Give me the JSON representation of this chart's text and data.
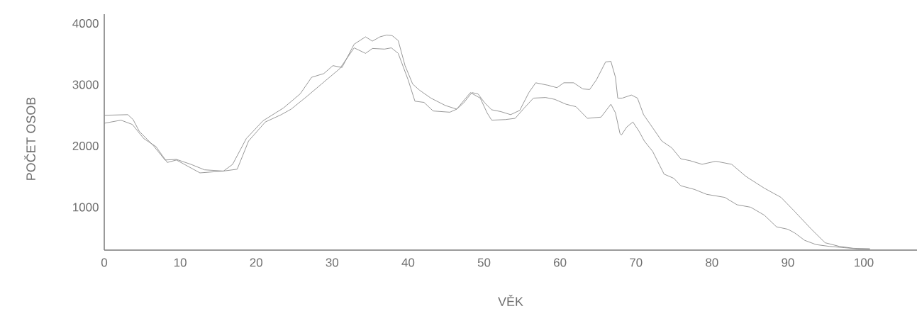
{
  "chart_data": {
    "type": "line",
    "xlabel": "VĚK",
    "ylabel": "POČET OSOB",
    "xlim": [
      0,
      107
    ],
    "ylim": [
      300,
      4150
    ],
    "xticks": [
      0,
      10,
      20,
      30,
      40,
      50,
      60,
      70,
      80,
      90,
      100
    ],
    "yticks": [
      1000,
      2000,
      3000,
      4000
    ],
    "grid": false,
    "marker": "none",
    "line_style": "solid",
    "series": [
      {
        "color": "#8c8c8c",
        "x": [
          0,
          3.1,
          3.8,
          4.6,
          6.5,
          8.0,
          9.5,
          11.4,
          13.2,
          15.7,
          16.9,
          18.7,
          20.9,
          23.6,
          25.8,
          27.3,
          28.9,
          30.1,
          31.3,
          32.9,
          34.4,
          35.3,
          36.3,
          37.2,
          37.9,
          38.7,
          39.6,
          40.6,
          41.5,
          43.0,
          44.9,
          46.4,
          47.3,
          48.4,
          49.2,
          50.1,
          51.0,
          52.2,
          53.5,
          54.7,
          55.9,
          56.8,
          58.4,
          59.6,
          60.5,
          61.8,
          63.0,
          63.9,
          64.8,
          66.0,
          66.7,
          67.3,
          67.6,
          68.2,
          69.4,
          70.2,
          71.0,
          71.9,
          73.4,
          74.7,
          75.9,
          77.1,
          78.7,
          80.5,
          82.6,
          84.5,
          86.9,
          89.1,
          90.9,
          93.1,
          94.9,
          96.8,
          98.6,
          100.8
        ],
        "values": [
          2500,
          2510,
          2430,
          2240,
          2000,
          1770,
          1780,
          1700,
          1610,
          1590,
          1700,
          2120,
          2410,
          2620,
          2850,
          3120,
          3180,
          3310,
          3280,
          3660,
          3780,
          3710,
          3780,
          3810,
          3800,
          3720,
          3310,
          3010,
          2910,
          2780,
          2660,
          2600,
          2700,
          2870,
          2850,
          2700,
          2590,
          2560,
          2510,
          2580,
          2870,
          3030,
          2990,
          2950,
          3030,
          3030,
          2930,
          2920,
          3080,
          3370,
          3380,
          3120,
          2780,
          2780,
          2830,
          2780,
          2510,
          2350,
          2080,
          1970,
          1790,
          1760,
          1700,
          1750,
          1700,
          1500,
          1310,
          1160,
          930,
          640,
          420,
          360,
          330,
          320
        ]
      },
      {
        "color": "#8c8c8c",
        "x": [
          0,
          2.2,
          3.7,
          5.2,
          6.8,
          8.3,
          9.5,
          12.6,
          15.7,
          17.5,
          19.0,
          21.2,
          23.3,
          24.6,
          26.7,
          28.6,
          31.0,
          32.9,
          34.4,
          35.3,
          36.9,
          37.8,
          38.7,
          40.0,
          40.9,
          42.1,
          43.3,
          45.5,
          46.4,
          48.2,
          49.5,
          50.4,
          51.0,
          52.8,
          54.1,
          55.3,
          56.5,
          58.1,
          59.3,
          60.8,
          62.1,
          63.6,
          65.4,
          66.7,
          67.3,
          67.9,
          68.1,
          68.8,
          69.6,
          70.4,
          71.1,
          72.2,
          73.7,
          75.0,
          75.9,
          77.7,
          79.3,
          81.7,
          83.3,
          85.1,
          86.9,
          88.5,
          90.0,
          90.9,
          92.2,
          93.7,
          95.5,
          97.4,
          99.2,
          100.8
        ],
        "values": [
          2370,
          2420,
          2350,
          2120,
          1990,
          1730,
          1770,
          1560,
          1590,
          1620,
          2080,
          2390,
          2510,
          2600,
          2810,
          3010,
          3260,
          3600,
          3510,
          3590,
          3580,
          3600,
          3510,
          3080,
          2730,
          2710,
          2570,
          2550,
          2600,
          2870,
          2780,
          2540,
          2420,
          2430,
          2450,
          2620,
          2780,
          2790,
          2760,
          2680,
          2640,
          2450,
          2470,
          2680,
          2540,
          2200,
          2180,
          2310,
          2390,
          2240,
          2080,
          1910,
          1540,
          1470,
          1350,
          1290,
          1210,
          1160,
          1040,
          1000,
          870,
          680,
          640,
          580,
          460,
          390,
          360,
          340,
          320,
          320
        ]
      }
    ]
  }
}
